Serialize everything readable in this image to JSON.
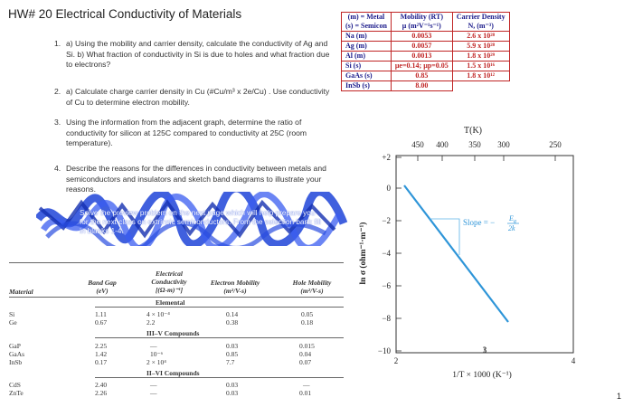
{
  "title": "HW# 20 Electrical Conductivity of Materials",
  "questions": [
    {
      "num": "1.",
      "text": "a) Using the mobility and carrier density, calculate the conductivity of Ag and Si. b) What fraction of conductivity in Si is due to holes and what fraction due to electrons?"
    },
    {
      "num": "2.",
      "text": "a) Calculate charge carrier density in Cu (#Cu/m³ x 2e/Cu) . Use conductivity of Cu to determine electron mobility."
    },
    {
      "num": "3.",
      "text": "Using the information from the adjacent graph, determine the ratio of conductivity for silicon at 125C compared to conductivity at 25C (room temperature)."
    },
    {
      "num": "4.",
      "text": "Describe the reasons for the differences in conductivity between metals and semiconductors and insulators and sketch band diagrams to illustrate your reasons."
    }
  ],
  "scribbled_text": "Solve the preview problem on the next page which will help prepare you for the next class on extrinsic semiconductors. From the selection bank fill in blanks 1-4.",
  "property_table": {
    "header": [
      "(m) = Metal\n(s) = Semicon",
      "Mobility (RT)\nμ (m²V⁻¹s⁻¹)",
      "Carrier Density\nN, (m⁻³)"
    ],
    "rows": [
      [
        "Na  (m)",
        "0.0053",
        "2.6 x 10²⁸"
      ],
      [
        "Ag  (m)",
        "0.0057",
        "5.9 x 10²⁸"
      ],
      [
        "Al  (m)",
        "0.0013",
        "1.8 x 10²⁹"
      ],
      [
        "Si  (s)",
        "μe=0.14; μp=0.05",
        "1.5 x 10¹⁶"
      ],
      [
        "GaAs  (s)",
        "0.85",
        "1.8 x 10¹²"
      ],
      [
        "InSb  (s)",
        "8.00",
        ""
      ]
    ]
  },
  "graph": {
    "top_axis_label": "T(K)",
    "top_ticks": [
      "450",
      "400",
      "350",
      "300",
      "250"
    ],
    "y_axis_label": "ln σ (ohm⁻¹·m⁻¹)",
    "y_ticks": [
      "+2",
      "0",
      "−2",
      "−4",
      "−6",
      "−8",
      "−10"
    ],
    "x_ticks": [
      "2",
      "3",
      "4"
    ],
    "x_axis_label": "1/T × 1000 (K⁻¹)",
    "slope_label": "Slope = −",
    "slope_frac_num": "E",
    "slope_frac_num_sub": "g",
    "slope_frac_den": "2k",
    "line_color": "#2e95d8"
  },
  "materials_table": {
    "headers": [
      "Material",
      "Band Gap\n(eV)",
      "Electrical\nConductivity\n[(Ω-m)⁻¹]",
      "Electron Mobility\n(m²/V-s)",
      "Hole Mobility\n(m²/V-s)"
    ],
    "sections": [
      {
        "name": "Elemental",
        "rows": [
          [
            "Si",
            "1.11",
            "4 × 10⁻⁴",
            "0.14",
            "0.05"
          ],
          [
            "Ge",
            "0.67",
            "2.2",
            "0.38",
            "0.18"
          ]
        ]
      },
      {
        "name": "III–V Compounds",
        "rows": [
          [
            "GaP",
            "2.25",
            "—",
            "0.03",
            "0.015"
          ],
          [
            "GaAs",
            "1.42",
            "10⁻⁶",
            "0.85",
            "0.04"
          ],
          [
            "InSb",
            "0.17",
            "2 × 10⁴",
            "7.7",
            "0.07"
          ]
        ]
      },
      {
        "name": "II–VI Compounds",
        "rows": [
          [
            "CdS",
            "2.40",
            "—",
            "0.03",
            "—"
          ],
          [
            "ZnTe",
            "2.26",
            "—",
            "0.03",
            "0.01"
          ]
        ]
      }
    ]
  },
  "page_number": "1"
}
